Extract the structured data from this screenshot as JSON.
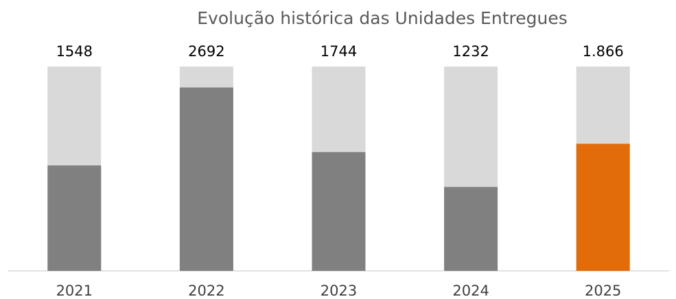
{
  "chart_data": {
    "type": "bar",
    "title": "Evolução histórica das Unidades Entregues",
    "categories": [
      "2021",
      "2022",
      "2023",
      "2024",
      "2025"
    ],
    "values": [
      1548,
      2692,
      1744,
      1232,
      1866
    ],
    "value_labels": [
      "1548",
      "2692",
      "1744",
      "1232",
      "1.866"
    ],
    "colors": [
      "#808080",
      "#808080",
      "#808080",
      "#808080",
      "#e36c0a"
    ],
    "background_color": "#d9d9d9",
    "ylim": [
      0,
      3000
    ]
  }
}
